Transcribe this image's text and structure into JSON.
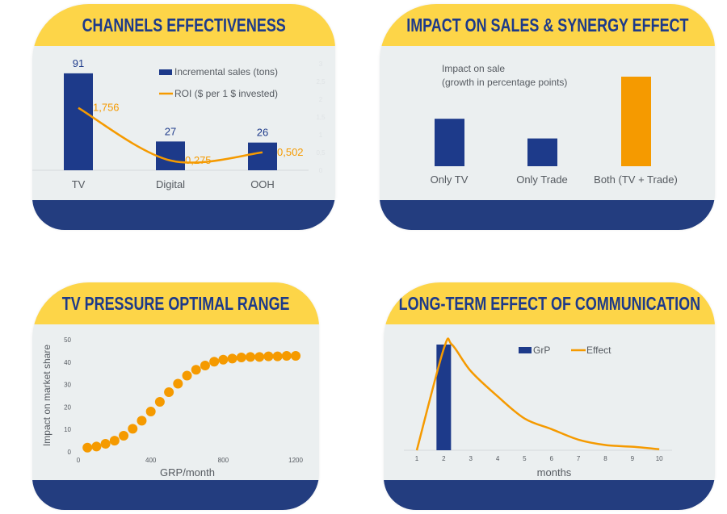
{
  "colors": {
    "header": "#fdd548",
    "body": "#ebeff0",
    "footer": "#233d7f",
    "navy": "#1d3a8a",
    "orange": "#f59a00",
    "text": "#555a60"
  },
  "chart_data": [
    {
      "type": "bar+line",
      "title": "CHANNELS EFFECTIVENESS",
      "categories": [
        "TV",
        "Digital",
        "OOH"
      ],
      "series": [
        {
          "name": "Incremental sales (tons)",
          "kind": "bar",
          "values": [
            91,
            27,
            26
          ],
          "labels": [
            "91",
            "27",
            "26"
          ]
        },
        {
          "name": "ROI ($ per 1 $ invested)",
          "kind": "line",
          "axis": "right",
          "values": [
            1.756,
            0.275,
            0.502
          ],
          "labels": [
            "1,756",
            "0,275",
            "0,502"
          ]
        }
      ],
      "right_axis": {
        "ylim": [
          0,
          3
        ],
        "ticks": [
          "0",
          "0,5",
          "1",
          "1,5",
          "2",
          "2,5",
          "3"
        ]
      },
      "legend": "top-right"
    },
    {
      "type": "bar",
      "title": "IMPACT ON SALES & SYNERGY EFFECT",
      "annotation": [
        "Impact on sale",
        "(growth in percentage points)"
      ],
      "categories": [
        "Only TV",
        "Only Trade",
        "Both (TV + Trade)"
      ],
      "values": [
        53,
        31,
        100
      ],
      "bar_colors": [
        "#1d3a8a",
        "#1d3a8a",
        "#f59a00"
      ]
    },
    {
      "type": "scatter",
      "title": "TV PRESSURE OPTIMAL RANGE",
      "xlabel": "GRP/month",
      "ylabel": "Impact on market share",
      "xlim": [
        0,
        1200
      ],
      "ylim": [
        0,
        50
      ],
      "xticks": [
        "0",
        "400",
        "800",
        "1200"
      ],
      "yticks": [
        "0",
        "10",
        "20",
        "30",
        "40",
        "50"
      ],
      "x": [
        50,
        100,
        150,
        200,
        250,
        300,
        350,
        400,
        450,
        500,
        550,
        600,
        650,
        700,
        750,
        800,
        850,
        900,
        950,
        1000,
        1050,
        1100,
        1150,
        1200
      ],
      "y": [
        1.9,
        2.4,
        3.6,
        5.0,
        7.2,
        10.3,
        13.9,
        18.0,
        22.3,
        26.6,
        30.4,
        34.0,
        36.6,
        38.5,
        40.2,
        41.1,
        41.6,
        42.1,
        42.3,
        42.3,
        42.6,
        42.6,
        42.8,
        42.8
      ]
    },
    {
      "type": "bar+line",
      "title": "LONG-TERM EFFECT OF COMMUNICATION",
      "xlabel": "months",
      "categories": [
        "1",
        "2",
        "3",
        "4",
        "5",
        "6",
        "7",
        "8",
        "9",
        "10"
      ],
      "series": [
        {
          "name": "GrP",
          "kind": "bar",
          "values": [
            0,
            100,
            0,
            0,
            0,
            0,
            0,
            0,
            0,
            0
          ]
        },
        {
          "name": "Effect",
          "kind": "line",
          "values": [
            0,
            96,
            75,
            51,
            30,
            20,
            10,
            5,
            3.3,
            1
          ]
        }
      ],
      "legend": "top"
    }
  ]
}
